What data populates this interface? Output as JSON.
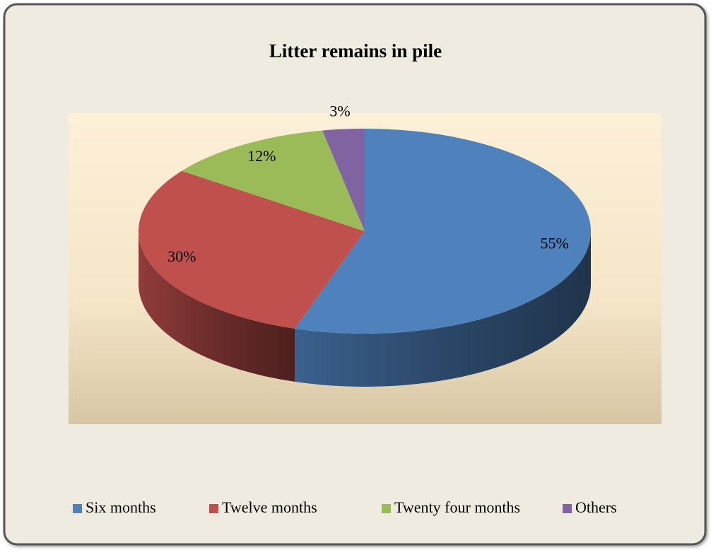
{
  "chart_data": {
    "type": "pie",
    "title": "Litter remains in pile",
    "categories": [
      "Six months",
      "Twelve months",
      "Twenty four months",
      "Others"
    ],
    "values": [
      55,
      30,
      12,
      3
    ],
    "value_labels": [
      "55%",
      "30%",
      "12%",
      "3%"
    ],
    "colors": [
      "#4f81bd",
      "#c0504d",
      "#9bbb59",
      "#8064a2"
    ],
    "legend": "bottom"
  }
}
